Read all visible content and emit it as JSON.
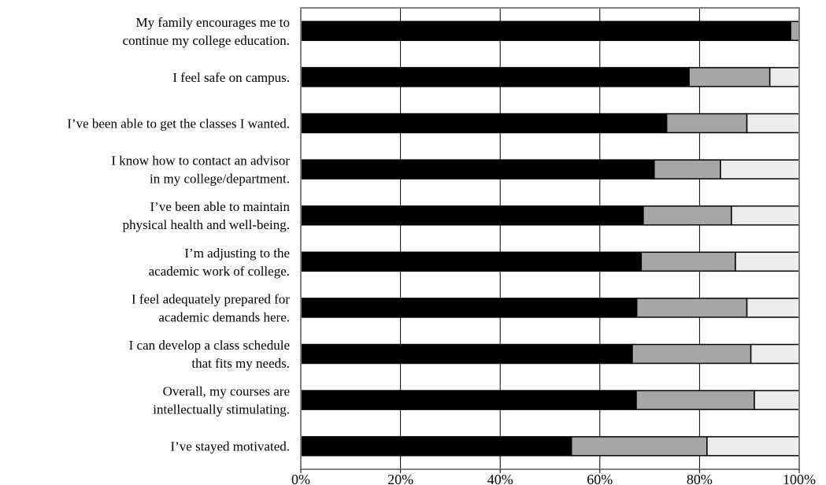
{
  "colors": {
    "agree": "#000000",
    "neutral": "#a6a6a6",
    "disagree": "#ececec",
    "gridline": "#000000",
    "frame": "#808080",
    "background": "#ffffff"
  },
  "chart_data": {
    "type": "bar",
    "orientation": "horizontal",
    "stacked": true,
    "percent_scale": true,
    "title": "",
    "xlabel": "",
    "ylabel": "",
    "xlim": [
      0,
      100
    ],
    "x_ticks": [
      "0%",
      "20%",
      "40%",
      "60%",
      "80%",
      "100%"
    ],
    "grid": "vertical",
    "legend": "none",
    "categories": [
      [
        "My family encourages me to",
        "continue my college education."
      ],
      [
        "I feel safe on campus."
      ],
      [
        "I’ve been able to get the classes I wanted."
      ],
      [
        "I know how to contact an advisor",
        "in my college/department."
      ],
      [
        "I’ve been able to maintain",
        "physical health and well-being."
      ],
      [
        "I’m adjusting to the",
        "academic work of college."
      ],
      [
        "I feel adequately prepared for",
        "academic demands here."
      ],
      [
        "I can develop a class schedule",
        "that fits my needs."
      ],
      [
        "Overall, my courses are",
        "intellectually stimulating."
      ],
      [
        "I’ve stayed motivated."
      ]
    ],
    "series": [
      {
        "values": [
          98.3,
          77.9,
          73.4,
          70.9,
          68.7,
          68.3,
          67.4,
          66.5,
          67.3,
          54.3
        ]
      },
      {
        "values": [
          1.7,
          16.2,
          16.1,
          13.3,
          17.7,
          18.9,
          22.1,
          23.8,
          23.7,
          27.2
        ]
      },
      {
        "values": [
          0.0,
          5.9,
          10.5,
          15.8,
          13.6,
          12.8,
          10.5,
          9.7,
          9.0,
          18.5
        ]
      }
    ]
  }
}
